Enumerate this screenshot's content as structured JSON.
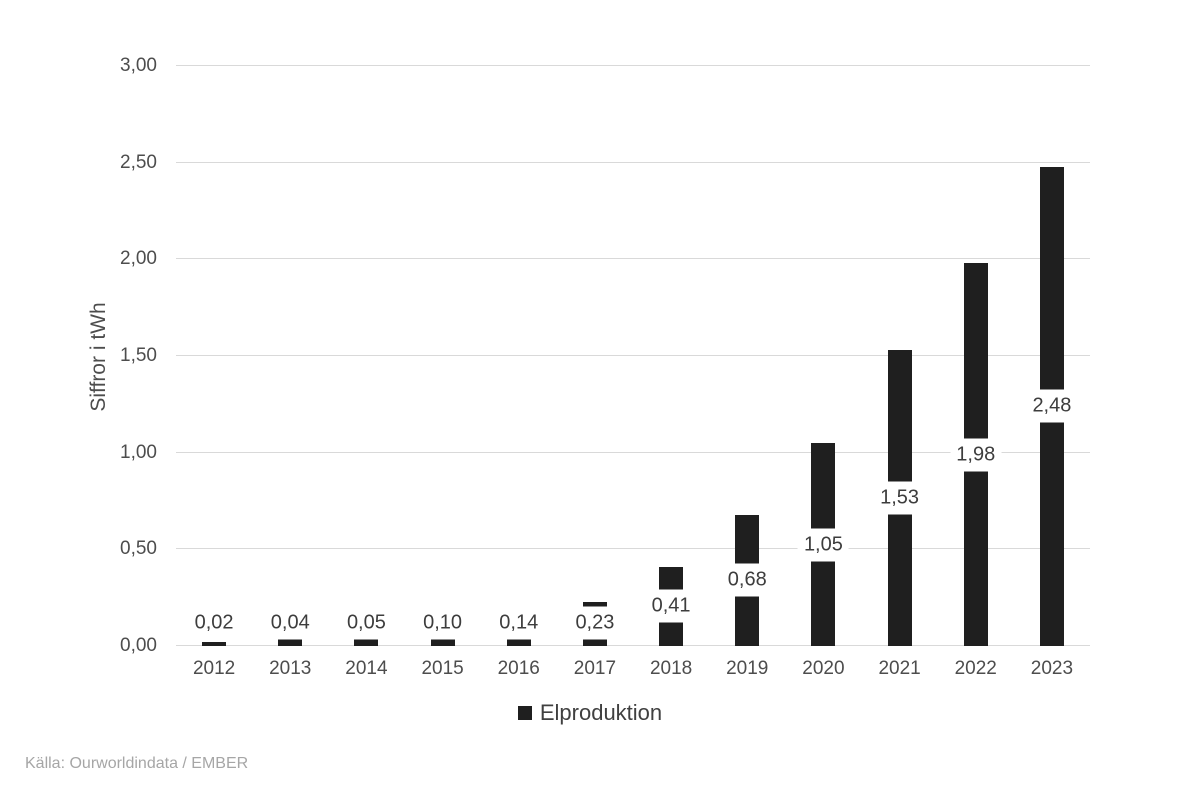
{
  "chart_data": {
    "type": "bar",
    "title": "",
    "categories": [
      "2012",
      "2013",
      "2014",
      "2015",
      "2016",
      "2017",
      "2018",
      "2019",
      "2020",
      "2021",
      "2022",
      "2023"
    ],
    "values": [
      0.02,
      0.04,
      0.05,
      0.1,
      0.14,
      0.23,
      0.41,
      0.68,
      1.05,
      1.53,
      1.98,
      2.48
    ],
    "value_labels": [
      "0,02",
      "0,04",
      "0,05",
      "0,10",
      "0,14",
      "0,23",
      "0,41",
      "0,68",
      "1,05",
      "1,53",
      "1,98",
      "2,48"
    ],
    "series": [
      {
        "name": "Elproduktion",
        "values": [
          0.02,
          0.04,
          0.05,
          0.1,
          0.14,
          0.23,
          0.41,
          0.68,
          1.05,
          1.53,
          1.98,
          2.48
        ]
      }
    ],
    "xlabel": "",
    "ylabel": "Siffror i tWh",
    "ylim": [
      0,
      3
    ],
    "ytick_step": 0.5,
    "ytick_labels": [
      "0,00",
      "0,50",
      "1,00",
      "1,50",
      "2,00",
      "2,50",
      "3,00"
    ],
    "grid": true,
    "legend_position": "bottom",
    "data_label_position": "center-with-white-background"
  },
  "y_axis": {
    "title": "Siffror i tWh"
  },
  "legend": {
    "label": "Elproduktion"
  },
  "source": {
    "text": "Källa: Ourworldindata / EMBER"
  },
  "colors": {
    "bar": "#1f1f1f",
    "gridline": "#d9d9d9",
    "axis_text": "#4d4d4d",
    "data_label_text": "#3d3d3d",
    "legend_text": "#404040",
    "source_text": "#a6a6a6",
    "background": "#ffffff"
  }
}
